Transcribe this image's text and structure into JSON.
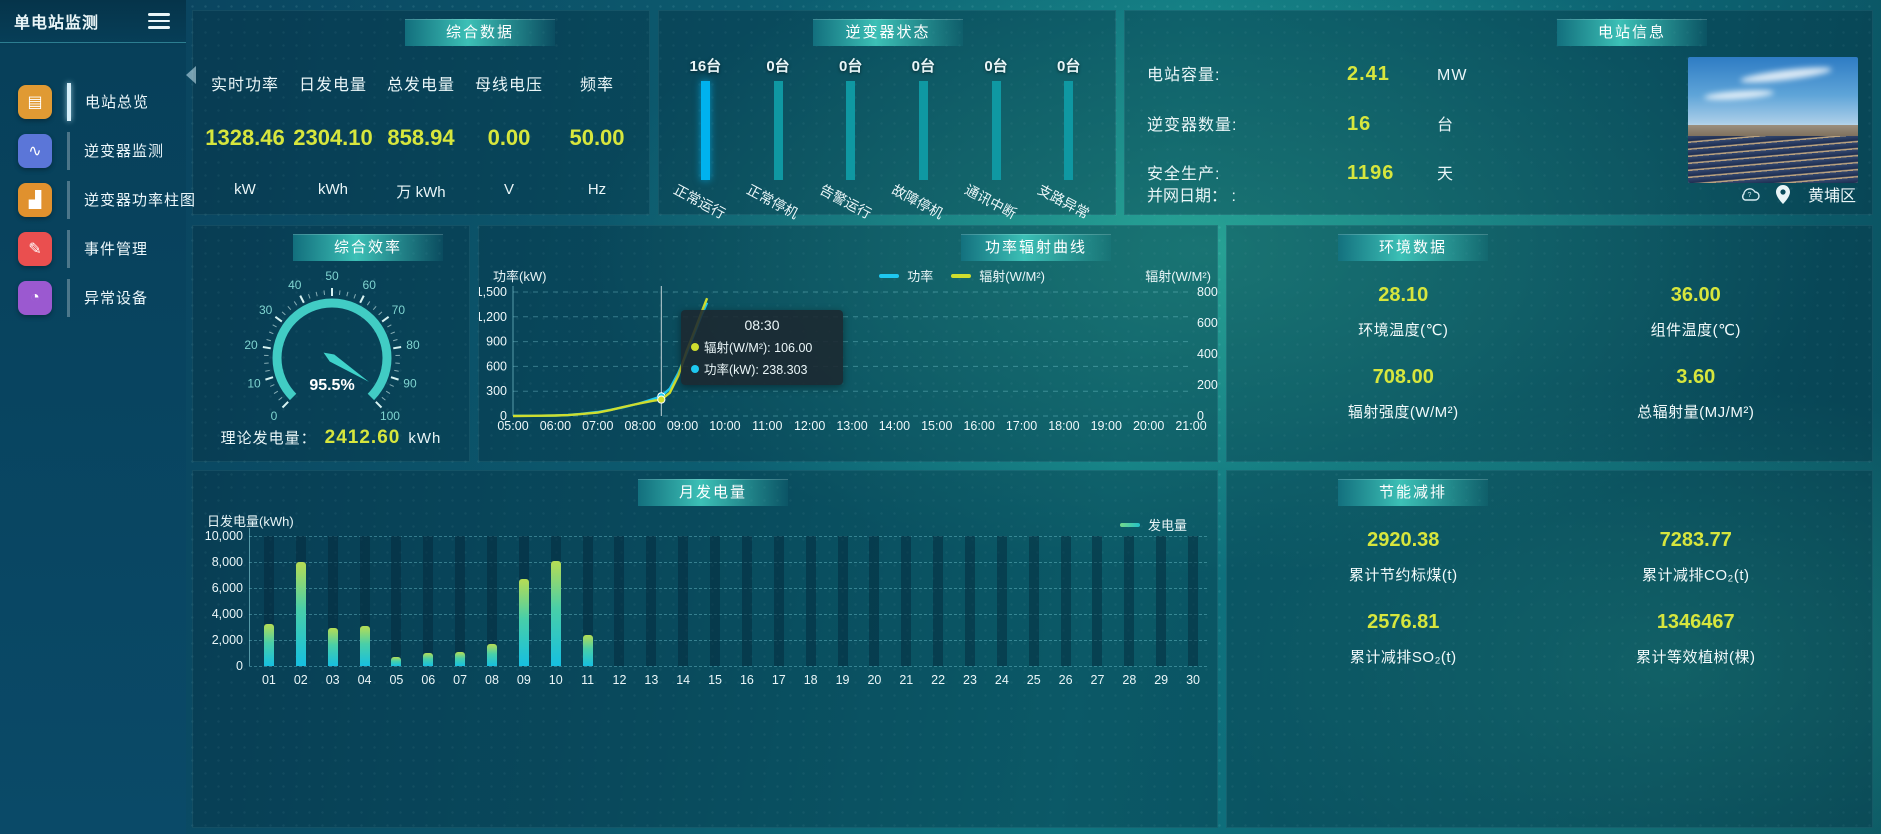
{
  "app": {
    "title": "单电站监测"
  },
  "sidebar": {
    "items": [
      {
        "label": "电站总览",
        "icon": "station-overview",
        "glyph": "▤",
        "color": "#e09a33",
        "active": true
      },
      {
        "label": "逆变器监测",
        "icon": "inverter-monitor",
        "glyph": "∿",
        "color": "#5b76d8",
        "active": false
      },
      {
        "label": "逆变器功率柱图",
        "icon": "inverter-power-bars",
        "glyph": "▟",
        "color": "#e0912e",
        "active": false
      },
      {
        "label": "事件管理",
        "icon": "event-management",
        "glyph": "✎",
        "color": "#ea4f4f",
        "active": false
      },
      {
        "label": "异常设备",
        "icon": "abnormal-devices",
        "glyph": "◔",
        "color": "#9b59d0",
        "active": false
      }
    ]
  },
  "panels": {
    "summary": {
      "title": "综合数据",
      "stats": [
        {
          "label": "实时功率",
          "value": "1328.46",
          "unit": "kW"
        },
        {
          "label": "日发电量",
          "value": "2304.10",
          "unit": "kWh"
        },
        {
          "label": "总发电量",
          "value": "858.94",
          "unit": "万 kWh"
        },
        {
          "label": "母线电压",
          "value": "0.00",
          "unit": "V"
        },
        {
          "label": "频率",
          "value": "50.00",
          "unit": "Hz"
        }
      ]
    },
    "inverter_status": {
      "title": "逆变器状态"
    },
    "station": {
      "title": "电站信息",
      "rows": [
        {
          "label": "电站容量:",
          "value": "2.41",
          "unit": "MW"
        },
        {
          "label": "逆变器数量:",
          "value": "16",
          "unit": "台"
        },
        {
          "label": "安全生产:",
          "value": "1196",
          "unit": "天"
        }
      ],
      "grid_date_label": "并网日期：  :",
      "location": "黄埔区"
    },
    "efficiency": {
      "title": "综合效率",
      "theory_label": "理论发电量：",
      "theory_value": "2412.60",
      "theory_unit": "kWh"
    },
    "power_radiation": {
      "title": "功率辐射曲线"
    },
    "environment": {
      "title": "环境数据",
      "stats": [
        {
          "value": "28.10",
          "label": "环境温度(℃)"
        },
        {
          "value": "36.00",
          "label": "组件温度(℃)"
        },
        {
          "value": "708.00",
          "label": "辐射强度(W/M²)"
        },
        {
          "value": "3.60",
          "label": "总辐射量(MJ/M²)"
        }
      ]
    },
    "monthly": {
      "title": "月发电量"
    },
    "saving": {
      "title": "节能减排",
      "stats": [
        {
          "value": "2920.38",
          "label": "累计节约标煤(t)"
        },
        {
          "value": "7283.77",
          "label": "累计减排CO₂(t)"
        },
        {
          "value": "2576.81",
          "label": "累计减排SO₂(t)"
        },
        {
          "value": "1346467",
          "label": "累计等效植树(棵)"
        }
      ]
    }
  },
  "chart_data": [
    {
      "id": "inverter_status",
      "type": "bar",
      "title": "逆变器状态",
      "categories": [
        "正常运行",
        "正常停机",
        "告警运行",
        "故障停机",
        "通讯中断",
        "支路异常"
      ],
      "values": [
        16,
        0,
        0,
        0,
        0,
        0
      ],
      "value_labels": [
        "16台",
        "0台",
        "0台",
        "0台",
        "0台",
        "0台"
      ],
      "highlight_color": "#00b2ee",
      "bar_color": "#0f98a2"
    },
    {
      "id": "power_radiation",
      "type": "line",
      "title": "功率辐射曲线",
      "ylabel_left": "功率(kW)",
      "ylabel_right": "辐射(W/M²)",
      "ylim_left": [
        0,
        1500
      ],
      "yticks_left": [
        "0",
        "300",
        "600",
        "900",
        "1,200",
        "1,500"
      ],
      "ylim_right": [
        0,
        800
      ],
      "yticks_right": [
        "0",
        "200",
        "400",
        "600",
        "800"
      ],
      "x_range": [
        5,
        21
      ],
      "x_ticks": [
        "05:00",
        "06:00",
        "07:00",
        "08:00",
        "09:00",
        "10:00",
        "11:00",
        "12:00",
        "13:00",
        "14:00",
        "15:00",
        "16:00",
        "17:00",
        "18:00",
        "19:00",
        "20:00",
        "21:00"
      ],
      "grid": "horizontal-dashed",
      "legend_position": "top-right",
      "series": [
        {
          "name": "功率",
          "axis": "left",
          "color": "#1ec8f0",
          "points": [
            [
              5,
              2
            ],
            [
              5.5,
              3
            ],
            [
              6,
              6
            ],
            [
              6.3,
              12
            ],
            [
              6.6,
              25
            ],
            [
              7,
              48
            ],
            [
              7.3,
              75
            ],
            [
              7.6,
              105
            ],
            [
              8,
              155
            ],
            [
              8.3,
              205
            ],
            [
              8.5,
              238.3
            ],
            [
              8.7,
              330
            ],
            [
              8.9,
              520
            ],
            [
              9.1,
              760
            ],
            [
              9.3,
              1020
            ],
            [
              9.45,
              1220
            ],
            [
              9.58,
              1370
            ]
          ]
        },
        {
          "name": "辐射(W/M²)",
          "axis": "right",
          "color": "#cfdd2e",
          "points": [
            [
              5,
              0
            ],
            [
              5.5,
              1
            ],
            [
              6,
              3
            ],
            [
              6.3,
              6
            ],
            [
              6.6,
              12
            ],
            [
              7,
              22
            ],
            [
              7.3,
              38
            ],
            [
              7.6,
              58
            ],
            [
              8,
              82
            ],
            [
              8.3,
              98
            ],
            [
              8.5,
              106
            ],
            [
              8.7,
              150
            ],
            [
              8.9,
              260
            ],
            [
              9.1,
              420
            ],
            [
              9.3,
              560
            ],
            [
              9.45,
              670
            ],
            [
              9.58,
              760
            ]
          ]
        }
      ],
      "tooltip": {
        "time": "08:30",
        "x": 8.5,
        "rows": [
          {
            "color": "#cfdd2e",
            "text": "辐射(W/M²): 106.00"
          },
          {
            "color": "#1ec8f0",
            "text": "功率(kW): 238.303"
          }
        ]
      }
    },
    {
      "id": "monthly_energy",
      "type": "bar",
      "title": "月发电量",
      "ylabel": "日发电量(kWh)",
      "ylim": [
        0,
        10000
      ],
      "yticks": [
        "0",
        "2,000",
        "4,000",
        "6,000",
        "8,000",
        "10,000"
      ],
      "legend": "发电量",
      "categories": [
        "01",
        "02",
        "03",
        "04",
        "05",
        "06",
        "07",
        "08",
        "09",
        "10",
        "11",
        "12",
        "13",
        "14",
        "15",
        "16",
        "17",
        "18",
        "19",
        "20",
        "21",
        "22",
        "23",
        "24",
        "25",
        "26",
        "27",
        "28",
        "29",
        "30"
      ],
      "values": [
        3200,
        8000,
        2900,
        3100,
        700,
        1000,
        1100,
        1700,
        6700,
        8100,
        2400,
        0,
        0,
        0,
        0,
        0,
        0,
        0,
        0,
        0,
        0,
        0,
        0,
        0,
        0,
        0,
        0,
        0,
        0,
        0
      ]
    },
    {
      "id": "efficiency_gauge",
      "type": "gauge",
      "value": 95.5,
      "label": "95.5%",
      "min": 0,
      "max": 100,
      "ticks": [
        0,
        10,
        20,
        30,
        40,
        50,
        60,
        70,
        80,
        90,
        100
      ]
    }
  ]
}
